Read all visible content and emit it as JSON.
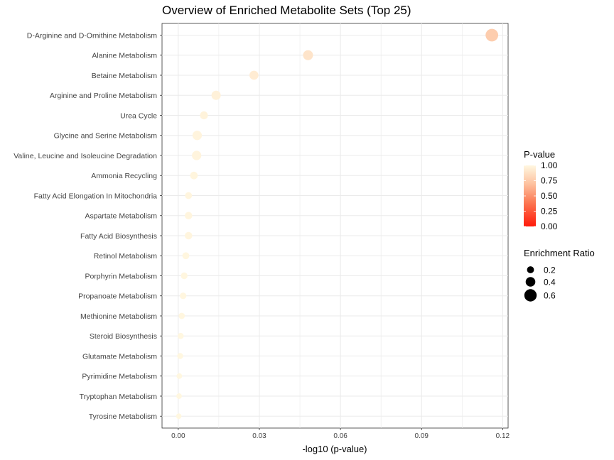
{
  "chart_data": {
    "type": "scatter",
    "title": "Overview of Enriched Metabolite Sets (Top 25)",
    "xlabel": "-log10 (p-value)",
    "ylabel": "",
    "xlim": [
      -0.006,
      0.122
    ],
    "xticks": [
      0.0,
      0.03,
      0.06,
      0.09,
      0.12
    ],
    "xtick_labels": [
      "0.00",
      "0.03",
      "0.06",
      "0.09",
      "0.12"
    ],
    "grid": true,
    "legend_position": "right",
    "categories": [
      "D-Arginine and D-Ornithine Metabolism",
      "Alanine Metabolism",
      "Betaine Metabolism",
      "Arginine and Proline Metabolism",
      "Urea Cycle",
      "Glycine and Serine Metabolism",
      "Valine, Leucine and Isoleucine Degradation",
      "Ammonia Recycling",
      "Fatty Acid Elongation In Mitochondria",
      "Aspartate Metabolism",
      "Fatty Acid Biosynthesis",
      "Retinol Metabolism",
      "Porphyrin Metabolism",
      "Propanoate Metabolism",
      "Methionine Metabolism",
      "Steroid Biosynthesis",
      "Glutamate Metabolism",
      "Pyrimidine Metabolism",
      "Tryptophan Metabolism",
      "Tyrosine Metabolism"
    ],
    "x": [
      0.116,
      0.048,
      0.028,
      0.014,
      0.0095,
      0.007,
      0.0068,
      0.0058,
      0.0038,
      0.0038,
      0.0038,
      0.0028,
      0.0022,
      0.0018,
      0.0013,
      0.0009,
      0.0007,
      0.0004,
      0.0003,
      0.0002
    ],
    "enrichment_ratio": [
      0.62,
      0.42,
      0.35,
      0.37,
      0.27,
      0.38,
      0.38,
      0.25,
      0.2,
      0.24,
      0.24,
      0.2,
      0.18,
      0.17,
      0.15,
      0.14,
      0.13,
      0.1,
      0.1,
      0.09
    ],
    "p_value": [
      0.765,
      0.895,
      0.937,
      0.968,
      0.978,
      0.984,
      0.984,
      0.987,
      0.991,
      0.991,
      0.991,
      0.994,
      0.995,
      0.996,
      0.997,
      0.998,
      0.998,
      0.999,
      0.999,
      1.0
    ],
    "color_legend": {
      "title": "P-value",
      "ticks": [
        1.0,
        0.75,
        0.5,
        0.25,
        0.0
      ],
      "tick_labels": [
        "1.00",
        "0.75",
        "0.50",
        "0.25",
        "0.00"
      ],
      "color_low": "#ff1a0a",
      "color_high": "#fff7e0"
    },
    "size_legend": {
      "title": "Enrichment Ratio",
      "values": [
        0.2,
        0.4,
        0.6
      ],
      "labels": [
        "0.2",
        "0.4",
        "0.6"
      ]
    }
  }
}
